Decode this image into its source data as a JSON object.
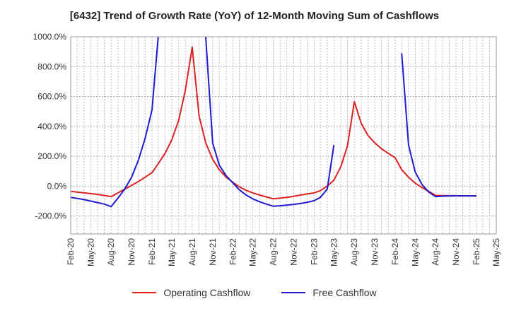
{
  "chart_data": {
    "type": "line",
    "title": "[6432]  Trend of Growth Rate (YoY) of 12-Month Moving Sum of Cashflows",
    "xlabel": "",
    "ylabel": "",
    "ylim": [
      -320,
      1000
    ],
    "y_ticks": [
      "1000.0%",
      "800.0%",
      "600.0%",
      "400.0%",
      "200.0%",
      "0.0%",
      "-200.0%"
    ],
    "y_tick_values": [
      1000,
      800,
      600,
      400,
      200,
      0,
      -200
    ],
    "x_tick_labels": [
      "Feb-20",
      "May-20",
      "Aug-20",
      "Nov-20",
      "Feb-21",
      "May-21",
      "Aug-21",
      "Nov-21",
      "Feb-22",
      "May-22",
      "Aug-22",
      "Nov-22",
      "Feb-23",
      "May-23",
      "Aug-23",
      "Nov-23",
      "Feb-24",
      "May-24",
      "Aug-24",
      "Nov-24",
      "Feb-25",
      "May-25"
    ],
    "grid": true,
    "legend_position": "bottom",
    "series": [
      {
        "name": "Operating Cashflow",
        "color": "#e02020",
        "values": [
          {
            "date": "2020-02",
            "y": -35
          },
          {
            "date": "2020-03",
            "y": -40
          },
          {
            "date": "2020-04",
            "y": -45
          },
          {
            "date": "2020-05",
            "y": -50
          },
          {
            "date": "2020-06",
            "y": -55
          },
          {
            "date": "2020-07",
            "y": -62
          },
          {
            "date": "2020-08",
            "y": -70
          },
          {
            "date": "2020-09",
            "y": -45
          },
          {
            "date": "2020-10",
            "y": -20
          },
          {
            "date": "2020-11",
            "y": 5
          },
          {
            "date": "2020-12",
            "y": 30
          },
          {
            "date": "2021-01",
            "y": 60
          },
          {
            "date": "2021-02",
            "y": 90
          },
          {
            "date": "2021-03",
            "y": 150
          },
          {
            "date": "2021-04",
            "y": 220
          },
          {
            "date": "2021-05",
            "y": 310
          },
          {
            "date": "2021-06",
            "y": 440
          },
          {
            "date": "2021-07",
            "y": 640
          },
          {
            "date": "2021-08",
            "y": 930
          },
          {
            "date": "2021-09",
            "y": 470
          },
          {
            "date": "2021-10",
            "y": 290
          },
          {
            "date": "2021-11",
            "y": 180
          },
          {
            "date": "2021-12",
            "y": 110
          },
          {
            "date": "2022-01",
            "y": 60
          },
          {
            "date": "2022-02",
            "y": 25
          },
          {
            "date": "2022-03",
            "y": -5
          },
          {
            "date": "2022-04",
            "y": -28
          },
          {
            "date": "2022-05",
            "y": -45
          },
          {
            "date": "2022-06",
            "y": -60
          },
          {
            "date": "2022-07",
            "y": -72
          },
          {
            "date": "2022-08",
            "y": -85
          },
          {
            "date": "2022-09",
            "y": -80
          },
          {
            "date": "2022-10",
            "y": -75
          },
          {
            "date": "2022-11",
            "y": -68
          },
          {
            "date": "2022-12",
            "y": -60
          },
          {
            "date": "2023-01",
            "y": -52
          },
          {
            "date": "2023-02",
            "y": -45
          },
          {
            "date": "2023-03",
            "y": -30
          },
          {
            "date": "2023-04",
            "y": 0
          },
          {
            "date": "2023-05",
            "y": 40
          },
          {
            "date": "2023-06",
            "y": 130
          },
          {
            "date": "2023-07",
            "y": 270
          },
          {
            "date": "2023-08",
            "y": 565
          },
          {
            "date": "2023-09",
            "y": 420
          },
          {
            "date": "2023-10",
            "y": 340
          },
          {
            "date": "2023-11",
            "y": 290
          },
          {
            "date": "2023-12",
            "y": 250
          },
          {
            "date": "2024-01",
            "y": 220
          },
          {
            "date": "2024-02",
            "y": 190
          },
          {
            "date": "2024-03",
            "y": 110
          },
          {
            "date": "2024-04",
            "y": 60
          },
          {
            "date": "2024-05",
            "y": 20
          },
          {
            "date": "2024-06",
            "y": -10
          },
          {
            "date": "2024-07",
            "y": -35
          },
          {
            "date": "2024-08",
            "y": -62
          },
          {
            "date": "2024-09",
            "y": -63
          },
          {
            "date": "2024-10",
            "y": -64
          },
          {
            "date": "2024-11",
            "y": -64
          },
          {
            "date": "2024-12",
            "y": -65
          },
          {
            "date": "2025-01",
            "y": -65
          },
          {
            "date": "2025-02",
            "y": -66
          }
        ]
      },
      {
        "name": "Free Cashflow",
        "color": "#1c1cd0",
        "values": [
          {
            "date": "2020-02",
            "y": -75
          },
          {
            "date": "2020-03",
            "y": -82
          },
          {
            "date": "2020-04",
            "y": -90
          },
          {
            "date": "2020-05",
            "y": -100
          },
          {
            "date": "2020-06",
            "y": -110
          },
          {
            "date": "2020-07",
            "y": -120
          },
          {
            "date": "2020-08",
            "y": -137
          },
          {
            "date": "2020-09",
            "y": -80
          },
          {
            "date": "2020-10",
            "y": -20
          },
          {
            "date": "2020-11",
            "y": 60
          },
          {
            "date": "2020-12",
            "y": 170
          },
          {
            "date": "2021-01",
            "y": 320
          },
          {
            "date": "2021-02",
            "y": 510
          },
          {
            "date": "2021-03",
            "y": 1000
          },
          {
            "date": "2021-04",
            "y": null
          },
          {
            "date": "2021-05",
            "y": null
          },
          {
            "date": "2021-06",
            "y": null
          },
          {
            "date": "2021-07",
            "y": null
          },
          {
            "date": "2021-08",
            "y": null
          },
          {
            "date": "2021-09",
            "y": null
          },
          {
            "date": "2021-10",
            "y": 1000
          },
          {
            "date": "2021-11",
            "y": 290
          },
          {
            "date": "2021-12",
            "y": 140
          },
          {
            "date": "2022-01",
            "y": 70
          },
          {
            "date": "2022-02",
            "y": 20
          },
          {
            "date": "2022-03",
            "y": -25
          },
          {
            "date": "2022-04",
            "y": -60
          },
          {
            "date": "2022-05",
            "y": -85
          },
          {
            "date": "2022-06",
            "y": -105
          },
          {
            "date": "2022-07",
            "y": -120
          },
          {
            "date": "2022-08",
            "y": -134
          },
          {
            "date": "2022-09",
            "y": -131
          },
          {
            "date": "2022-10",
            "y": -127
          },
          {
            "date": "2022-11",
            "y": -122
          },
          {
            "date": "2022-12",
            "y": -116
          },
          {
            "date": "2023-01",
            "y": -108
          },
          {
            "date": "2023-02",
            "y": -97
          },
          {
            "date": "2023-03",
            "y": -75
          },
          {
            "date": "2023-04",
            "y": -20
          },
          {
            "date": "2023-05",
            "y": 275
          },
          {
            "date": "2023-06",
            "y": null
          },
          {
            "date": "2023-07",
            "y": null
          },
          {
            "date": "2023-08",
            "y": null
          },
          {
            "date": "2023-09",
            "y": null
          },
          {
            "date": "2023-10",
            "y": null
          },
          {
            "date": "2023-11",
            "y": null
          },
          {
            "date": "2023-12",
            "y": null
          },
          {
            "date": "2024-01",
            "y": null
          },
          {
            "date": "2024-02",
            "y": null
          },
          {
            "date": "2024-03",
            "y": 890
          },
          {
            "date": "2024-04",
            "y": 275
          },
          {
            "date": "2024-05",
            "y": 95
          },
          {
            "date": "2024-06",
            "y": 10
          },
          {
            "date": "2024-07",
            "y": -40
          },
          {
            "date": "2024-08",
            "y": -70
          },
          {
            "date": "2024-09",
            "y": -67
          },
          {
            "date": "2024-10",
            "y": -66
          },
          {
            "date": "2024-11",
            "y": -65
          },
          {
            "date": "2024-12",
            "y": -65
          },
          {
            "date": "2025-01",
            "y": -65
          },
          {
            "date": "2025-02",
            "y": -65
          }
        ]
      }
    ]
  }
}
